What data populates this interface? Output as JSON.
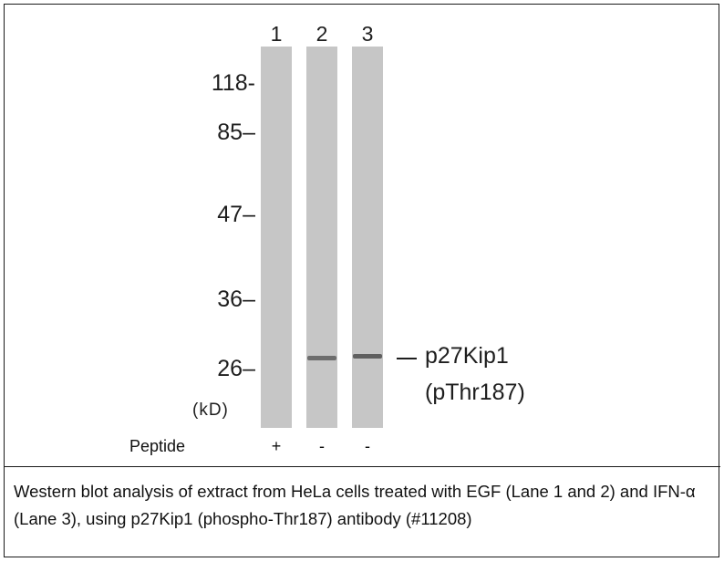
{
  "lanes": [
    {
      "number": "1",
      "peptide": "+"
    },
    {
      "number": "2",
      "peptide": "-"
    },
    {
      "number": "3",
      "peptide": "-"
    }
  ],
  "markers": [
    "118-",
    "85–",
    "47–",
    "36–",
    "26–"
  ],
  "unit_label": "(kD)",
  "band_label_line1": "p27Kip1",
  "band_label_line2": "(pThr187)",
  "peptide_label": "Peptide",
  "caption": "Western blot analysis of extract from HeLa cells treated with EGF (Lane 1 and 2) and IFN-α (Lane 3), using p27Kip1 (phospho-Thr187) antibody (#11208)"
}
